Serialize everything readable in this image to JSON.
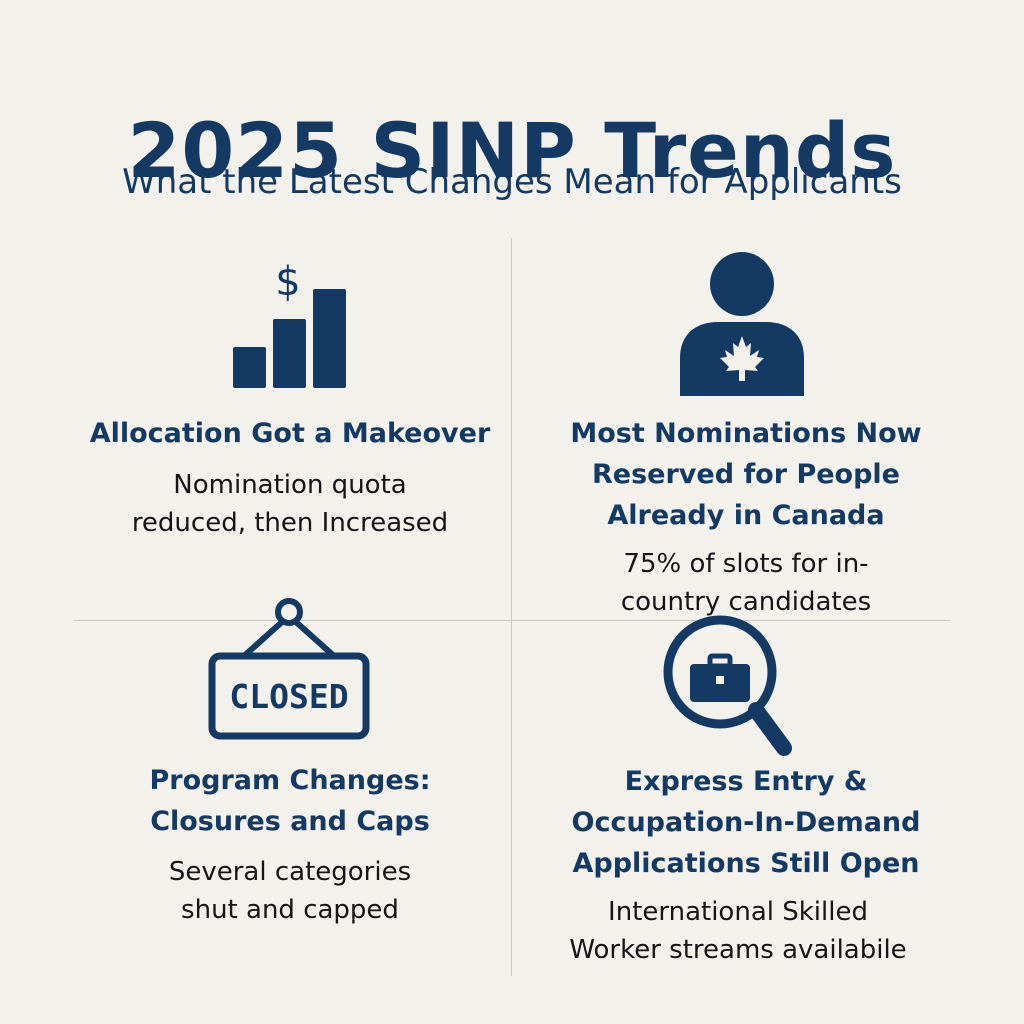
{
  "header": {
    "title": "2025 SINP Trends",
    "subtitle": "What the Latest Changes Mean for Applicants"
  },
  "colors": {
    "navy": "#143a63",
    "background": "#f2f1ec",
    "divider": "#c9c9c4"
  },
  "cards": [
    {
      "icon": "bar-chart-dollar-icon",
      "icon_glyph": "$",
      "heading": "Allocation Got a Makeover",
      "description": "Nomination quota\nreduced, then Increased"
    },
    {
      "icon": "person-maple-leaf-icon",
      "heading": "Most Nominations  Now\nReserved for People\nAlready in Canada",
      "description": "75% of slots for in-\ncountry candidates"
    },
    {
      "icon": "closed-sign-icon",
      "icon_text": "CLOSED",
      "heading": "Program Changes:\nClosures and Caps",
      "description": "Several categories\nshut and capped"
    },
    {
      "icon": "briefcase-magnifier-icon",
      "heading": "Express Entry &\nOccupation-In-Demand\nApplications Still Open",
      "description": "International Skilled\nWorker streams availabile"
    }
  ]
}
